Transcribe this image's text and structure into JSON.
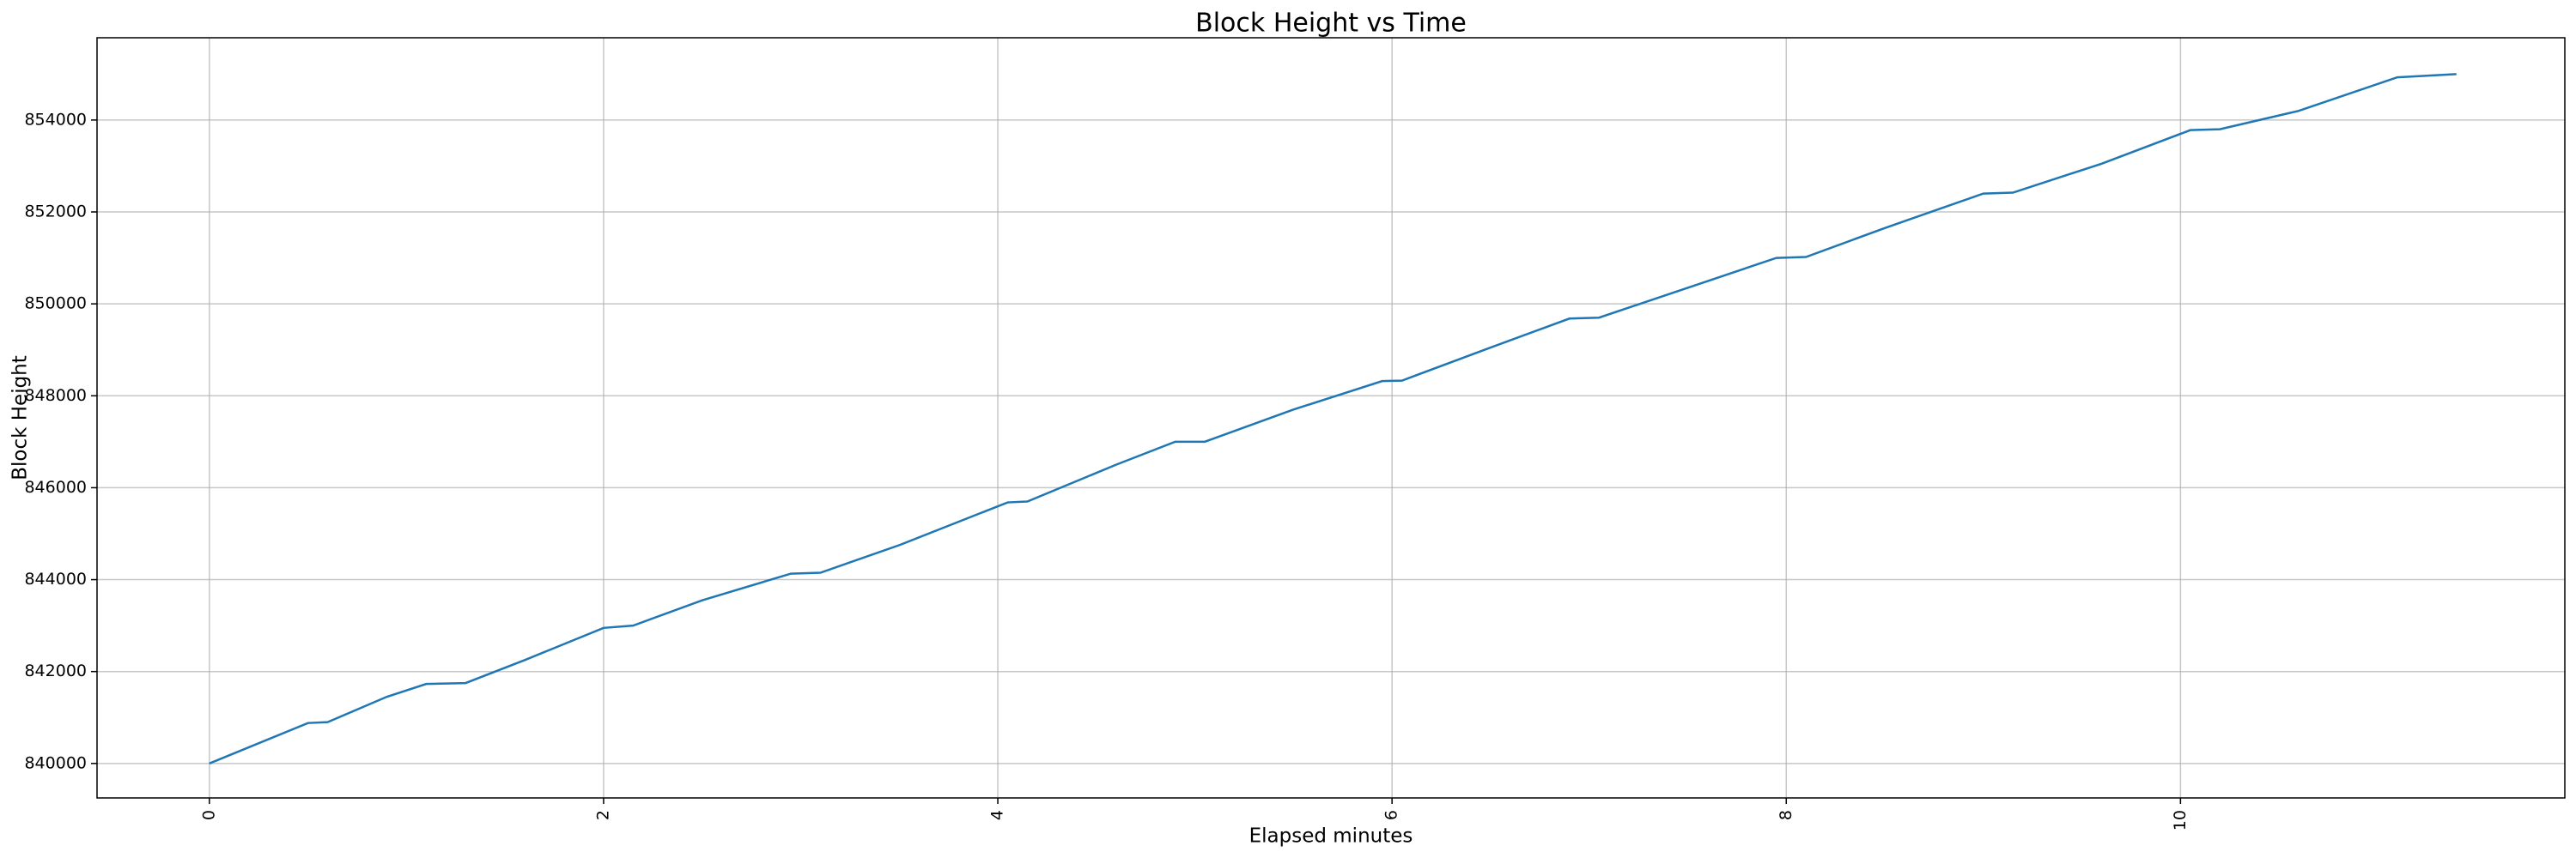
{
  "chart_data": {
    "type": "line",
    "title": "Block Height vs Time",
    "xlabel": "Elapsed minutes",
    "ylabel": "Block Height",
    "x": [
      0,
      0.5,
      0.6,
      0.9,
      1.1,
      1.3,
      1.6,
      2.0,
      2.15,
      2.5,
      2.95,
      3.1,
      3.5,
      4.05,
      4.15,
      4.6,
      4.9,
      5.05,
      5.5,
      5.95,
      6.05,
      6.5,
      6.9,
      7.05,
      7.5,
      7.95,
      8.1,
      8.5,
      9.0,
      9.15,
      9.6,
      10.05,
      10.2,
      10.6,
      11.1,
      11.4
    ],
    "series": [
      {
        "color": "#1f77b4",
        "values": [
          840000,
          840880,
          840900,
          841450,
          841730,
          841750,
          842250,
          842950,
          843000,
          843550,
          844130,
          844150,
          844750,
          845680,
          845700,
          846500,
          847000,
          847000,
          847700,
          848320,
          848330,
          849050,
          849680,
          849700,
          850350,
          851000,
          851020,
          851650,
          852400,
          852420,
          853050,
          853780,
          853800,
          854200,
          854930,
          855000
        ]
      }
    ],
    "xlim": [
      -0.57,
      11.95
    ],
    "ylim": [
      839250,
      855790
    ],
    "xticks": [
      0,
      2,
      4,
      6,
      8,
      10
    ],
    "yticks": [
      840000,
      842000,
      844000,
      846000,
      848000,
      850000,
      852000,
      854000
    ],
    "grid": true
  }
}
